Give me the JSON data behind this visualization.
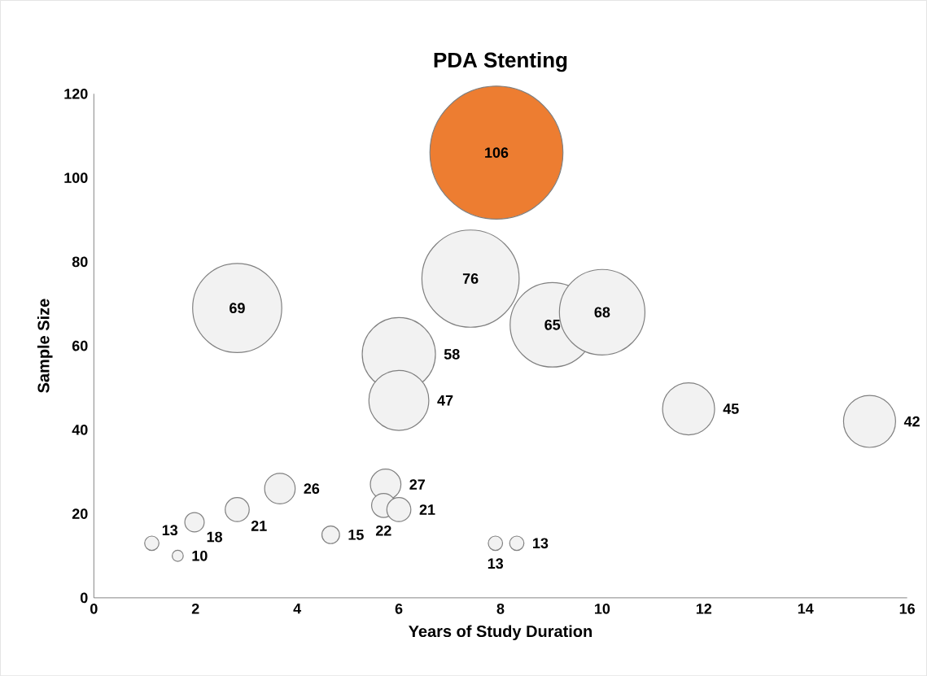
{
  "chart_data": {
    "type": "bubble",
    "title": "PDA Stenting",
    "xlabel": "Years of Study Duration",
    "ylabel": "Sample Size",
    "x": [
      7.92,
      7.41,
      2.82,
      9.02,
      10.0,
      6.0,
      6.0,
      11.7,
      15.26,
      5.74,
      3.66,
      5.7,
      6.0,
      2.82,
      1.98,
      4.66,
      1.14,
      7.9,
      8.32,
      1.65
    ],
    "values": [
      106,
      76,
      69,
      65,
      68,
      58,
      47,
      45,
      42,
      27,
      26,
      22,
      21,
      21,
      18,
      15,
      13,
      13,
      13,
      10
    ],
    "sizes": [
      1,
      0.54,
      0.455,
      0.41,
      0.42,
      0.31,
      0.21,
      0.16,
      0.16,
      0.058,
      0.058,
      0.037,
      0.037,
      0.037,
      0.025,
      0.021,
      0.0145,
      0.0145,
      0.0145,
      0.0093
    ],
    "colors": [
      "#ed7d31",
      "#f2f2f2",
      "#f2f2f2",
      "#f2f2f2",
      "#f2f2f2",
      "#f2f2f2",
      "#f2f2f2",
      "#f2f2f2",
      "#f2f2f2",
      "#f2f2f2",
      "#f2f2f2",
      "#f2f2f2",
      "#f2f2f2",
      "#f2f2f2",
      "#f2f2f2",
      "#f2f2f2",
      "#f2f2f2",
      "#f2f2f2",
      "#f2f2f2",
      "#f2f2f2"
    ],
    "data_labels": true,
    "xlim": [
      0,
      16
    ],
    "xticks": [
      0,
      2,
      4,
      6,
      8,
      10,
      12,
      14,
      16
    ],
    "ylim": [
      0,
      120
    ],
    "yticks": [
      0,
      20,
      40,
      60,
      80,
      100,
      120
    ]
  }
}
